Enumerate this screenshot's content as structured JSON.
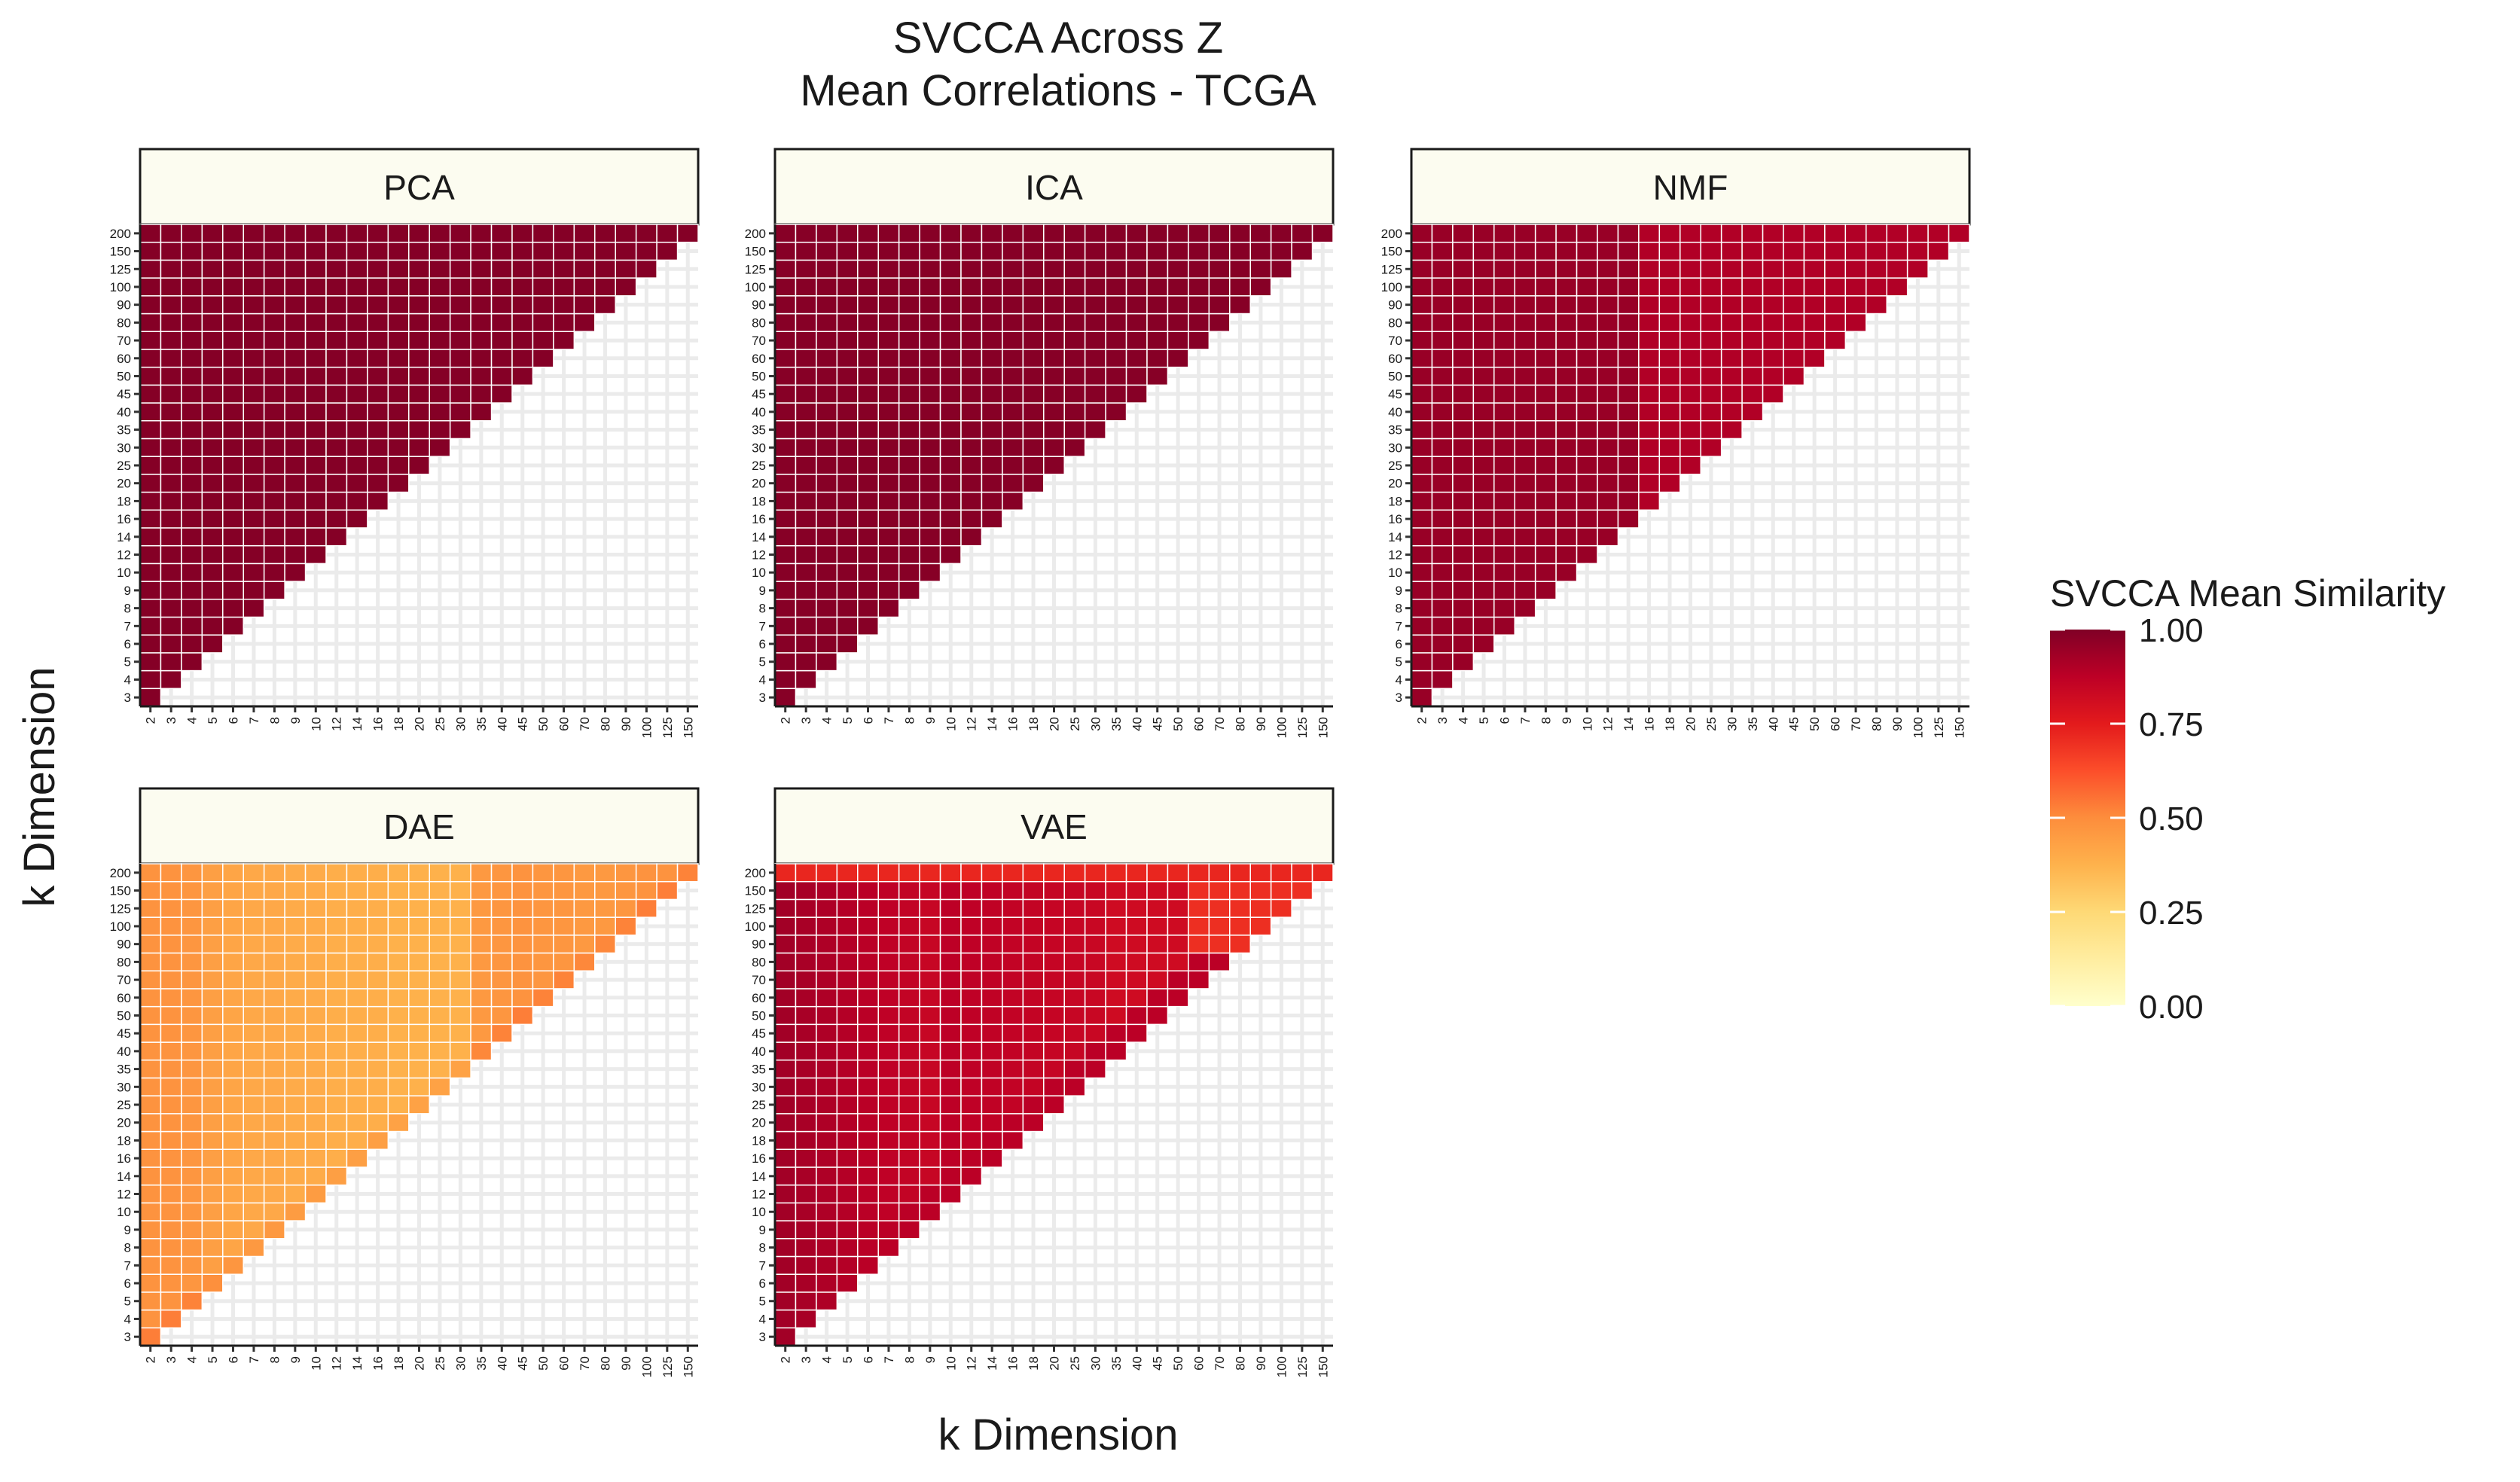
{
  "chart_data": {
    "type": "heatmap",
    "title_line1": "SVCCA Across Z",
    "title_line2": "Mean Correlations - TCGA",
    "xlabel": "k Dimension",
    "ylabel": "k Dimension",
    "x_ticks": [
      "2",
      "3",
      "4",
      "5",
      "6",
      "7",
      "8",
      "9",
      "10",
      "12",
      "14",
      "16",
      "18",
      "20",
      "25",
      "30",
      "35",
      "40",
      "45",
      "50",
      "60",
      "70",
      "80",
      "90",
      "100",
      "125",
      "150"
    ],
    "y_ticks": [
      "3",
      "4",
      "5",
      "6",
      "7",
      "8",
      "9",
      "10",
      "12",
      "14",
      "16",
      "18",
      "20",
      "25",
      "30",
      "35",
      "40",
      "45",
      "50",
      "60",
      "70",
      "80",
      "90",
      "100",
      "125",
      "150",
      "200"
    ],
    "value_range": [
      0,
      1
    ],
    "legend": {
      "title": "SVCCA Mean Similarity",
      "labels": [
        "1.00",
        "0.75",
        "0.50",
        "0.25",
        "0.00"
      ],
      "ticks": [
        1.0,
        0.75,
        0.5,
        0.25,
        0.0
      ],
      "position": "right"
    },
    "colorscale": [
      "#ffffcc",
      "#ffeda0",
      "#fed976",
      "#feb24c",
      "#fd8d3c",
      "#fc4e2a",
      "#e31a1c",
      "#bd0026",
      "#800026"
    ],
    "panels": [
      {
        "name": "PCA",
        "model": "pca"
      },
      {
        "name": "ICA",
        "model": "ica"
      },
      {
        "name": "NMF",
        "model": "nmf"
      },
      {
        "name": "DAE",
        "model": "dae"
      },
      {
        "name": "VAE",
        "model": "vae"
      }
    ],
    "value_model": {
      "pca": {
        "base": 0.99
      },
      "ica": {
        "base": 0.985
      },
      "nmf": {
        "base": 0.95,
        "low": 0.9,
        "lowStartCol": 11
      },
      "dae": {
        "base": 0.42,
        "col_adj": [
          0.06,
          0.06,
          0.05,
          0.02,
          0,
          -0.01,
          -0.01,
          -0.02,
          -0.02,
          -0.03,
          -0.03,
          -0.03,
          -0.04,
          -0.04,
          -0.04,
          -0.04,
          0.04,
          0.05,
          0.06,
          0.05,
          0.05,
          0.04,
          0.04,
          0.05,
          0.06,
          0.06,
          0.05
        ]
      },
      "vae": {
        "base": 0.82,
        "high": 0.93,
        "top": 0.7
      }
    }
  }
}
